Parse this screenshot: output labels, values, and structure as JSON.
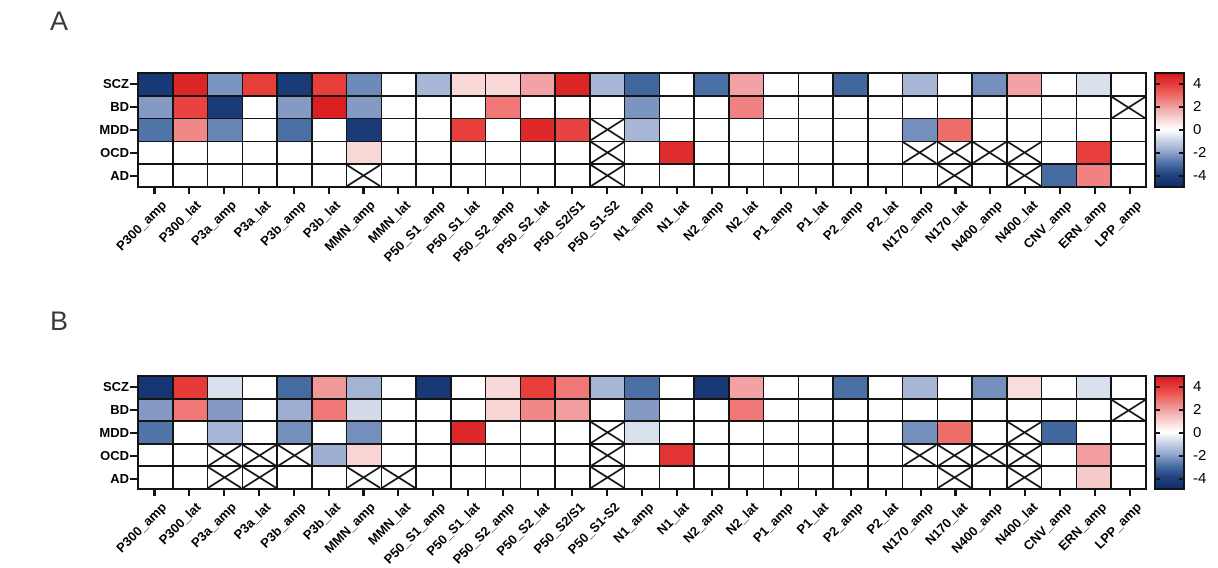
{
  "figure": {
    "accent_colors": {
      "max_red": "#d81a1e",
      "min_blue": "#0d2e6b",
      "grid_line": "#141414"
    }
  },
  "chart_data": {
    "type": "heatmap",
    "columns": [
      "P300_amp",
      "P300_lat",
      "P3a_amp",
      "P3a_lat",
      "P3b_amp",
      "P3b_lat",
      "MMN_amp",
      "MMN_lat",
      "P50_S1_amp",
      "P50_S1_lat",
      "P50_S2_amp",
      "P50_S2_lat",
      "P50_S2/S1",
      "P50_S1-S2",
      "N1_amp",
      "N1_lat",
      "N2_amp",
      "N2_lat",
      "P1_amp",
      "P1_lat",
      "P2_amp",
      "P2_lat",
      "N170_amp",
      "N170_lat",
      "N400_amp",
      "N400_lat",
      "CNV_amp",
      "ERN_amp",
      "LPP_amp"
    ],
    "rows": [
      "SCZ",
      "BD",
      "MDD",
      "OCD",
      "AD"
    ],
    "colorbar": {
      "tick_labels": [
        "4",
        "2",
        "0",
        "-2",
        "-4"
      ],
      "vmin": -5,
      "vmax": 5
    },
    "colormap_anchors": [
      [
        -5,
        "#0d2e6b"
      ],
      [
        -4,
        "#234280"
      ],
      [
        -3,
        "#4a6fa5"
      ],
      [
        -2,
        "#92a5cc"
      ],
      [
        -1,
        "#c8d2e6"
      ],
      [
        0,
        "#ffffff"
      ],
      [
        1,
        "#f8d4d4"
      ],
      [
        2,
        "#f2a2a4"
      ],
      [
        3,
        "#ee6e6a"
      ],
      [
        4,
        "#e83e3c"
      ],
      [
        5,
        "#d81a1e"
      ]
    ],
    "panels": [
      {
        "label": "A",
        "values": {
          "SCZ": [
            -4.5,
            4.7,
            -2.3,
            4.0,
            -4.4,
            4.0,
            -2.5,
            0,
            -1.6,
            0.9,
            0.9,
            2.0,
            4.7,
            -1.6,
            -3.2,
            0,
            -3.0,
            2.0,
            0,
            0,
            -3.2,
            0,
            -1.6,
            0,
            -2.4,
            2.0,
            0,
            -0.7,
            0
          ],
          "BD": [
            -2.2,
            3.9,
            -4.4,
            0,
            -2.2,
            4.9,
            -2.2,
            0,
            0,
            0,
            2.8,
            0,
            0,
            0,
            -2.3,
            0,
            0,
            2.6,
            0,
            0,
            0,
            0,
            0,
            0,
            0,
            0,
            0,
            0,
            "x"
          ],
          "MDD": [
            -2.9,
            2.5,
            -2.6,
            0,
            -3.0,
            0,
            -4.4,
            0,
            0,
            4.0,
            0,
            4.6,
            3.9,
            "x",
            -1.6,
            0,
            0,
            0,
            0,
            0,
            0,
            0,
            -2.4,
            3.0,
            0,
            0,
            0,
            0,
            0
          ],
          "OCD": [
            0,
            0,
            0,
            0,
            0,
            0,
            0.9,
            0,
            0,
            0,
            0,
            0,
            0,
            "x",
            0,
            4.5,
            0,
            0,
            0,
            0,
            0,
            0,
            "x",
            "x",
            "x",
            "x",
            0,
            4.0,
            0
          ],
          "AD": [
            0,
            0,
            0,
            0,
            0,
            0,
            "x",
            0,
            0,
            0,
            0,
            0,
            0,
            "x",
            0,
            0,
            0,
            0,
            0,
            0,
            0,
            0,
            0,
            "x",
            0,
            "x",
            -3.1,
            2.6,
            0
          ]
        }
      },
      {
        "label": "B",
        "values": {
          "SCZ": [
            -4.6,
            4.1,
            -0.7,
            0,
            -3.1,
            2.2,
            -1.7,
            0,
            -4.5,
            0,
            0.9,
            4.0,
            2.8,
            -1.6,
            -3.0,
            0,
            -4.5,
            2.0,
            0,
            0,
            -3.0,
            0,
            -1.6,
            0,
            -2.4,
            0.8,
            0,
            -0.7,
            0
          ],
          "BD": [
            -2.2,
            2.8,
            -2.2,
            0,
            -1.8,
            2.8,
            -0.8,
            0,
            0,
            0,
            1.0,
            2.5,
            2.1,
            0,
            -2.2,
            0,
            0,
            2.8,
            0,
            0,
            0,
            0,
            0,
            0,
            0,
            0,
            0,
            0,
            "x"
          ],
          "MDD": [
            -2.9,
            0,
            -1.6,
            0,
            -2.4,
            0,
            -2.4,
            0,
            0,
            4.6,
            0,
            0,
            0,
            "x",
            -0.7,
            0,
            0,
            0,
            0,
            0,
            0,
            0,
            -2.4,
            3.0,
            0,
            "x",
            -3.2,
            0,
            0
          ],
          "OCD": [
            0,
            0,
            "x",
            "x",
            "x",
            -1.8,
            1.0,
            0,
            0,
            0,
            0,
            0,
            0,
            "x",
            0,
            4.3,
            0,
            0,
            0,
            0,
            0,
            0,
            "x",
            "x",
            "x",
            "x",
            0,
            2.1,
            0
          ],
          "AD": [
            0,
            0,
            "x",
            "x",
            0,
            0,
            "x",
            "x",
            0,
            0,
            0,
            0,
            0,
            "x",
            0,
            0,
            0,
            0,
            0,
            0,
            0,
            0,
            0,
            "x",
            0,
            "x",
            0,
            1.2,
            0
          ]
        }
      }
    ]
  }
}
